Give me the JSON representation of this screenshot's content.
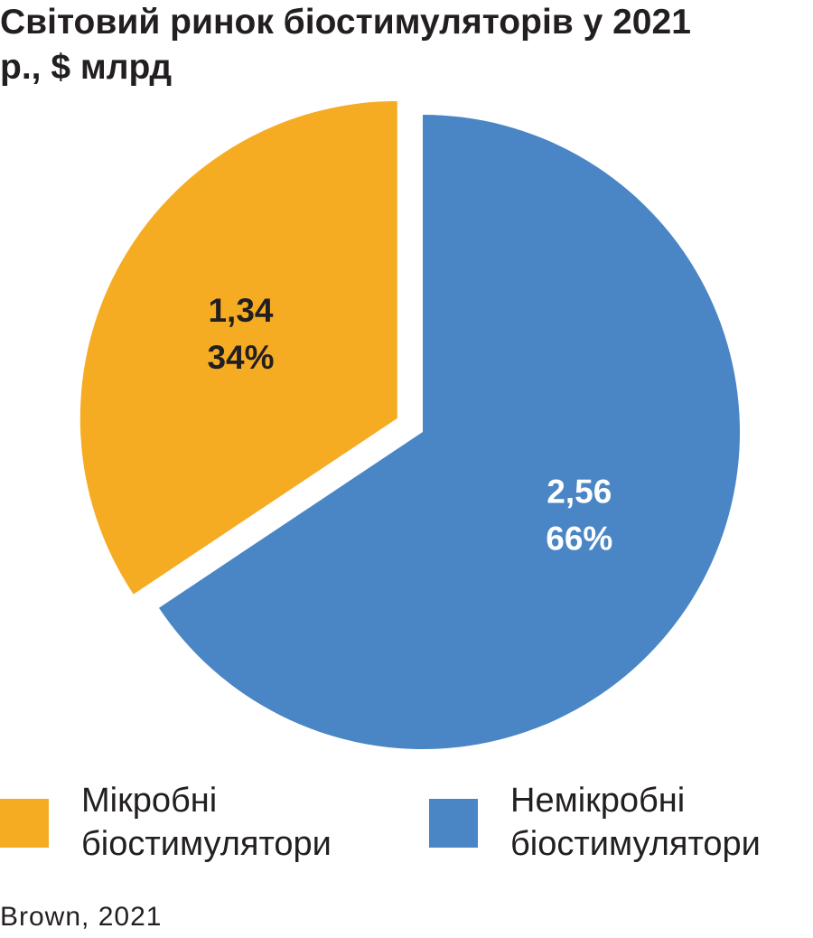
{
  "chart_data": {
    "type": "pie",
    "title": "Світовий ринок біостимуляторів у 2021 р., $ млрд",
    "categories": [
      "Мікробні біостимулятори",
      "Немікробні біостимулятори"
    ],
    "values": [
      1.34,
      2.56
    ],
    "value_labels": [
      "1,34",
      "2,56"
    ],
    "percents": [
      34,
      66
    ],
    "percent_labels": [
      "34%",
      "66%"
    ],
    "colors": [
      "#f5ac23",
      "#4a86c5"
    ],
    "label_colors": [
      "#231f20",
      "#ffffff"
    ],
    "source": "Brown, 2021"
  }
}
